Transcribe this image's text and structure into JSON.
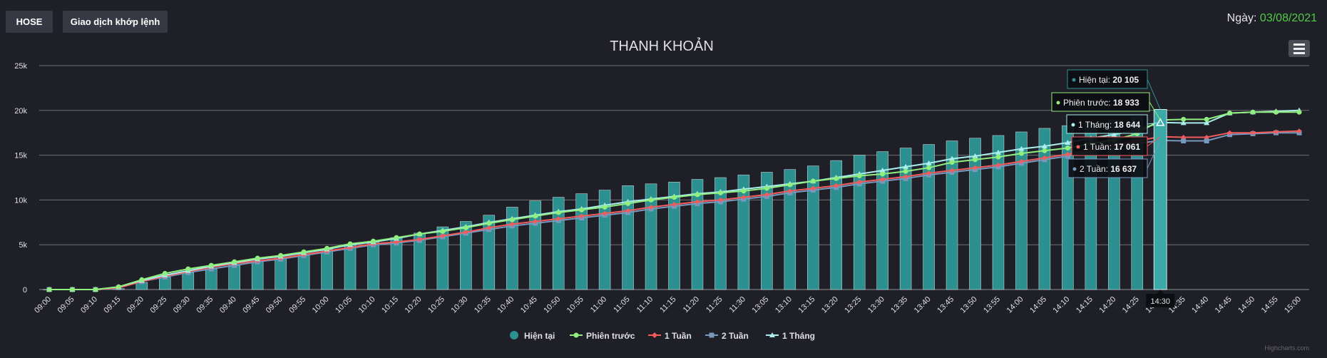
{
  "toolbar": {
    "exchange_label": "HOSE",
    "mode_label": "Giao dịch khớp lệnh",
    "date_label": "Ngày:",
    "date_value": "03/08/2021"
  },
  "credits": "Highcharts.com",
  "menu_icon": "hamburger-menu-icon",
  "colors": {
    "current": "#2b908f",
    "previous": "#90ee7e",
    "week1": "#f45b5b",
    "week2": "#7798bf",
    "month1": "#aaeeee",
    "background": "#1e1f27",
    "date": "#52cc45"
  },
  "chart_data": {
    "type": "bar",
    "title": "THANH KHOẢN",
    "xlabel": "",
    "ylabel": "",
    "ylim": [
      0,
      25000
    ],
    "yticks": [
      "0",
      "5k",
      "10k",
      "15k",
      "20k",
      "25k"
    ],
    "grid": true,
    "legend_position": "bottom-center",
    "categories": [
      "09:00",
      "09:05",
      "09:10",
      "09:15",
      "09:20",
      "09:25",
      "09:30",
      "09:35",
      "09:40",
      "09:45",
      "09:50",
      "09:55",
      "10:00",
      "10:05",
      "10:10",
      "10:15",
      "10:20",
      "10:25",
      "10:30",
      "10:35",
      "10:40",
      "10:45",
      "10:50",
      "10:55",
      "11:00",
      "11:05",
      "11:10",
      "11:15",
      "11:20",
      "11:25",
      "11:30",
      "13:05",
      "13:10",
      "13:15",
      "13:20",
      "13:25",
      "13:30",
      "13:35",
      "13:40",
      "13:45",
      "13:50",
      "13:55",
      "14:00",
      "14:05",
      "14:10",
      "14:15",
      "14:20",
      "14:25",
      "14:30",
      "14:35",
      "14:40",
      "14:45",
      "14:50",
      "14:55",
      "15:00"
    ],
    "series": [
      {
        "name": "Hiện tại",
        "kind": "bar",
        "values": [
          0,
          0,
          0,
          100,
          800,
          1400,
          1900,
          2300,
          2700,
          3100,
          3500,
          4000,
          4500,
          5000,
          5400,
          5800,
          6300,
          7000,
          7600,
          8300,
          9200,
          9900,
          10300,
          10700,
          11100,
          11600,
          11800,
          12000,
          12300,
          12500,
          12800,
          13100,
          13400,
          13800,
          14400,
          15000,
          15400,
          15800,
          16200,
          16600,
          16900,
          17200,
          17600,
          18000,
          18300,
          18600,
          18900,
          19300,
          20105,
          null,
          null,
          null,
          null,
          null,
          null
        ]
      },
      {
        "name": "Phiên trước",
        "kind": "line",
        "values": [
          0,
          0,
          0,
          300,
          1100,
          1800,
          2300,
          2700,
          3100,
          3500,
          3800,
          4200,
          4600,
          5100,
          5400,
          5800,
          6200,
          6500,
          6900,
          7400,
          7800,
          8200,
          8600,
          8900,
          9200,
          9600,
          10000,
          10300,
          10600,
          10800,
          11000,
          11300,
          11700,
          12100,
          12400,
          12700,
          12900,
          13200,
          13600,
          14200,
          14500,
          14800,
          15200,
          15500,
          15800,
          16300,
          16700,
          17400,
          18933,
          19000,
          19000,
          19700,
          19800,
          19800,
          19800
        ]
      },
      {
        "name": "1 Tuần",
        "kind": "line",
        "values": [
          0,
          0,
          0,
          200,
          900,
          1500,
          2000,
          2500,
          2900,
          3200,
          3500,
          3900,
          4300,
          4700,
          5100,
          5300,
          5600,
          6000,
          6400,
          6900,
          7300,
          7600,
          7900,
          8200,
          8500,
          8800,
          9200,
          9500,
          9800,
          10000,
          10300,
          10600,
          11000,
          11300,
          11600,
          12000,
          12300,
          12600,
          13000,
          13300,
          13600,
          13900,
          14300,
          14700,
          15100,
          15600,
          16100,
          16600,
          17061,
          17000,
          17000,
          17500,
          17500,
          17600,
          17700
        ]
      },
      {
        "name": "2 Tuần",
        "kind": "line",
        "values": [
          0,
          0,
          0,
          200,
          900,
          1400,
          1900,
          2300,
          2700,
          3100,
          3400,
          3800,
          4200,
          4600,
          5000,
          5200,
          5500,
          5900,
          6300,
          6700,
          7100,
          7400,
          7700,
          8000,
          8300,
          8600,
          9000,
          9300,
          9600,
          9800,
          10100,
          10400,
          10800,
          11100,
          11400,
          11800,
          12100,
          12400,
          12800,
          13100,
          13400,
          13700,
          14100,
          14500,
          14900,
          15400,
          15900,
          16300,
          16637,
          16600,
          16600,
          17300,
          17400,
          17500,
          17500
        ]
      },
      {
        "name": "1 Tháng",
        "kind": "line",
        "values": [
          0,
          0,
          0,
          300,
          1000,
          1600,
          2100,
          2600,
          3000,
          3400,
          3700,
          4100,
          4500,
          5000,
          5300,
          5700,
          6200,
          6600,
          7000,
          7500,
          7900,
          8300,
          8700,
          9000,
          9400,
          9800,
          10100,
          10400,
          10700,
          10900,
          11200,
          11500,
          11800,
          12100,
          12500,
          12900,
          13300,
          13700,
          14100,
          14600,
          14900,
          15300,
          15700,
          16000,
          16400,
          16900,
          17300,
          17800,
          18644,
          18600,
          18600,
          19700,
          19800,
          19900,
          20000
        ]
      }
    ],
    "tooltip": {
      "time": "14:30",
      "items": [
        {
          "name": "Hiện tại",
          "value": "20 105"
        },
        {
          "name": "Phiên trước",
          "value": "18 933"
        },
        {
          "name": "1 Tháng",
          "value": "18 644"
        },
        {
          "name": "1 Tuần",
          "value": "17 061"
        },
        {
          "name": "2 Tuần",
          "value": "16 637"
        }
      ]
    }
  }
}
